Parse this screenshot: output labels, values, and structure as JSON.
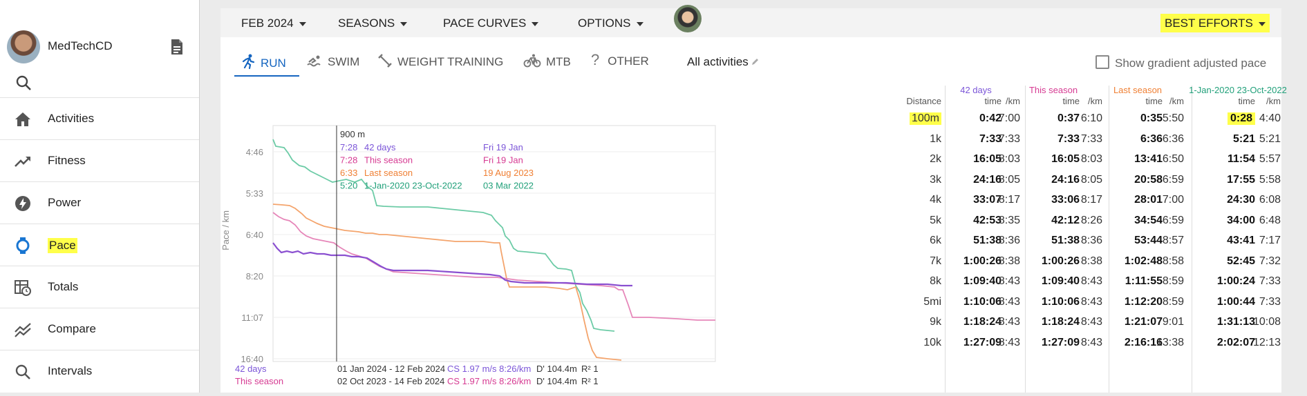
{
  "sidebar": {
    "username": "MedTechCD",
    "items": [
      {
        "label": "Activities",
        "icon": "home-icon"
      },
      {
        "label": "Fitness",
        "icon": "trending-up-icon"
      },
      {
        "label": "Power",
        "icon": "bolt-icon"
      },
      {
        "label": "Pace",
        "icon": "watch-icon",
        "highlighted": true
      },
      {
        "label": "Totals",
        "icon": "table-clock-icon"
      },
      {
        "label": "Compare",
        "icon": "multiline-chart-icon"
      },
      {
        "label": "Intervals",
        "icon": "search-icon"
      }
    ]
  },
  "topbar": {
    "date_menu": "FEB 2024",
    "seasons_menu": "SEASONS",
    "pace_curves_menu": "PACE CURVES",
    "options_menu": "OPTIONS",
    "best_efforts_menu": "BEST EFFORTS"
  },
  "tabs": {
    "run": "RUN",
    "swim": "SWIM",
    "weight": "WEIGHT TRAINING",
    "mtb": "MTB",
    "other": "OTHER",
    "all_activities": "All activities",
    "gradient_label": "Show gradient adjusted pace"
  },
  "colors": {
    "days42": "#7b55d8",
    "this_season": "#d63a92",
    "last_season": "#ef7f33",
    "range": "#21a07a",
    "accent": "#1565c0",
    "highlight": "#ffff4a"
  },
  "chart_data": {
    "type": "line",
    "ylabel": "Pace / km",
    "y_ticks": [
      "4:46",
      "5:33",
      "6:40",
      "8:20",
      "11:07",
      "16:40"
    ],
    "cursor": {
      "distance": "900 m",
      "rows": [
        {
          "pace": "7:28",
          "name": "42 days",
          "date": "Fri 19 Jan"
        },
        {
          "pace": "7:28",
          "name": "This season",
          "date": "Fri 19 Jan"
        },
        {
          "pace": "6:33",
          "name": "Last season",
          "date": "19 Aug 2023"
        },
        {
          "pace": "5:20",
          "name": "1-Jan-2020 23-Oct-2022",
          "date": "03 Mar 2022"
        }
      ]
    },
    "series": [
      {
        "name": "42 days",
        "range": "01 Jan 2024 - 12 Feb 2024",
        "cs": "CS 1.97 m/s 8:26/km",
        "dprime": "D' 104.4m",
        "r2": "R² 1"
      },
      {
        "name": "This season",
        "range": "02 Oct 2023 - 14 Feb 2024",
        "cs": "CS 1.97 m/s 8:26/km",
        "dprime": "D' 104.4m",
        "r2": "R² 1"
      }
    ]
  },
  "table": {
    "distance_header": "Distance",
    "time_header": "time",
    "per_km_header": "/km",
    "groups": [
      "42 days",
      "This season",
      "Last season",
      "1-Jan-2020 23-Oct-2022"
    ],
    "rows": [
      {
        "d": "100m",
        "v": [
          "0:42",
          "7:00",
          "0:37",
          "6:10",
          "0:35",
          "5:50",
          "0:28",
          "4:40"
        ]
      },
      {
        "d": "1k",
        "v": [
          "7:33",
          "7:33",
          "7:33",
          "7:33",
          "6:36",
          "6:36",
          "5:21",
          "5:21"
        ]
      },
      {
        "d": "2k",
        "v": [
          "16:05",
          "8:03",
          "16:05",
          "8:03",
          "13:41",
          "6:50",
          "11:54",
          "5:57"
        ]
      },
      {
        "d": "3k",
        "v": [
          "24:16",
          "8:05",
          "24:16",
          "8:05",
          "20:58",
          "6:59",
          "17:55",
          "5:58"
        ]
      },
      {
        "d": "4k",
        "v": [
          "33:07",
          "8:17",
          "33:06",
          "8:17",
          "28:01",
          "7:00",
          "24:30",
          "6:08"
        ]
      },
      {
        "d": "5k",
        "v": [
          "42:53",
          "8:35",
          "42:12",
          "8:26",
          "34:54",
          "6:59",
          "34:00",
          "6:48"
        ]
      },
      {
        "d": "6k",
        "v": [
          "51:38",
          "8:36",
          "51:38",
          "8:36",
          "53:44",
          "8:57",
          "43:41",
          "7:17"
        ]
      },
      {
        "d": "7k",
        "v": [
          "1:00:26",
          "8:38",
          "1:00:26",
          "8:38",
          "1:02:48",
          "8:58",
          "52:45",
          "7:32"
        ]
      },
      {
        "d": "8k",
        "v": [
          "1:09:40",
          "8:43",
          "1:09:40",
          "8:43",
          "1:11:55",
          "8:59",
          "1:00:24",
          "7:33"
        ]
      },
      {
        "d": "5mi",
        "v": [
          "1:10:06",
          "8:43",
          "1:10:06",
          "8:43",
          "1:12:20",
          "8:59",
          "1:00:44",
          "7:33"
        ]
      },
      {
        "d": "9k",
        "v": [
          "1:18:24",
          "8:43",
          "1:18:24",
          "8:43",
          "1:21:07",
          "9:01",
          "1:31:13",
          "10:08"
        ]
      },
      {
        "d": "10k",
        "v": [
          "1:27:09",
          "8:43",
          "1:27:09",
          "8:43",
          "2:16:16",
          "13:38",
          "2:02:07",
          "12:13"
        ]
      }
    ]
  }
}
